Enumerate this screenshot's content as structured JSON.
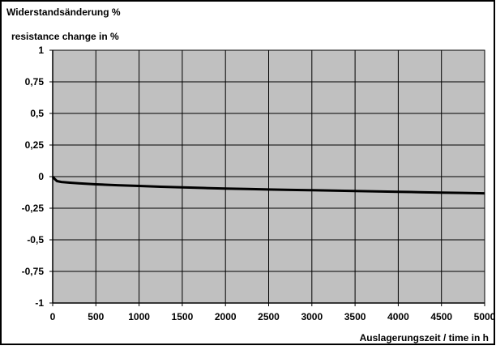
{
  "chart_data": {
    "type": "line",
    "title": "",
    "ylabel_de": "Widerstandsänderung %",
    "ylabel_en": "resistance change in %",
    "xlabel": "Auslagerungszeit / time in h",
    "xlim": [
      0,
      5000
    ],
    "ylim": [
      -1,
      1
    ],
    "grid": true,
    "legend": "none",
    "xticks": [
      0,
      500,
      1000,
      1500,
      2000,
      2500,
      3000,
      3500,
      4000,
      4500,
      5000
    ],
    "xtick_labels": [
      "0",
      "500",
      "1000",
      "1500",
      "2000",
      "2500",
      "3000",
      "3500",
      "4000",
      "4500",
      "5000"
    ],
    "yticks": [
      1,
      0.75,
      0.5,
      0.25,
      0,
      -0.25,
      -0.5,
      -0.75,
      -1
    ],
    "ytick_labels": [
      "1",
      "0,75",
      "0,5",
      "0,25",
      "0",
      "-0,25",
      "-0,5",
      "-0,75",
      "-1"
    ],
    "colors": {
      "plot_background": "#c0c0c0",
      "gridline": "#000000",
      "series": "#000000"
    },
    "series": [
      {
        "x": [
          0,
          25,
          50,
          100,
          200,
          300,
          400,
          500,
          750,
          1000,
          1250,
          1500,
          1750,
          2000,
          2250,
          2500,
          2750,
          3000,
          3250,
          3500,
          3750,
          4000,
          4250,
          4500,
          4750,
          5000
        ],
        "values": [
          0,
          -0.02,
          -0.035,
          -0.042,
          -0.048,
          -0.053,
          -0.057,
          -0.061,
          -0.068,
          -0.074,
          -0.08,
          -0.085,
          -0.09,
          -0.094,
          -0.098,
          -0.102,
          -0.105,
          -0.108,
          -0.111,
          -0.114,
          -0.117,
          -0.12,
          -0.123,
          -0.126,
          -0.129,
          -0.132
        ]
      }
    ]
  }
}
